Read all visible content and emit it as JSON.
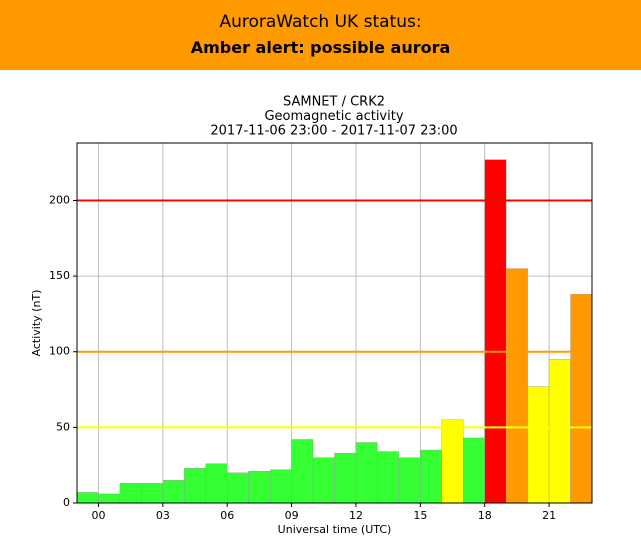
{
  "banner": {
    "status_label": "AuroraWatch UK status:",
    "status": "Amber alert: possible aurora"
  },
  "chart_data": {
    "type": "histogram",
    "title": [
      "SAMNET / CRK2",
      "Geomagnetic activity",
      "2017-11-06 23:00 - 2017-11-07 23:00"
    ],
    "x_label": "Universal time (UTC)",
    "y_label": "Activity (nT)",
    "bins": [
      -1,
      0,
      1,
      2,
      3,
      4,
      5,
      6,
      7,
      8,
      9,
      10,
      11,
      12,
      13,
      14,
      15,
      16,
      17,
      18,
      19,
      20,
      21,
      22,
      23
    ],
    "values": [
      7,
      6,
      13,
      13,
      15,
      23,
      26,
      20,
      21,
      22,
      42,
      30,
      33,
      40,
      34,
      30,
      35,
      55,
      43,
      227,
      155,
      77,
      95,
      138
    ],
    "colors": [
      "#33ff33",
      "#33ff33",
      "#33ff33",
      "#33ff33",
      "#33ff33",
      "#33ff33",
      "#33ff33",
      "#33ff33",
      "#33ff33",
      "#33ff33",
      "#33ff33",
      "#33ff33",
      "#33ff33",
      "#33ff33",
      "#33ff33",
      "#33ff33",
      "#33ff33",
      "#ffff00",
      "#33ff33",
      "#ff0000",
      "#ff9900",
      "#ffff00",
      "#ffff00",
      "#ff9900"
    ],
    "thresholds": [
      {
        "value": 50,
        "color": "#ffff00"
      },
      {
        "value": 100,
        "color": "#ff9900"
      },
      {
        "value": 200,
        "color": "#ff0000"
      }
    ],
    "xlim": [
      -1,
      23
    ],
    "xticks": [
      {
        "value": 0,
        "label": "00"
      },
      {
        "value": 3,
        "label": "03"
      },
      {
        "value": 6,
        "label": "06"
      },
      {
        "value": 9,
        "label": "09"
      },
      12,
      15,
      18,
      21
    ],
    "ylim": [
      0,
      238
    ],
    "yticks": [
      0,
      50,
      100,
      150,
      200
    ],
    "grid": true
  }
}
